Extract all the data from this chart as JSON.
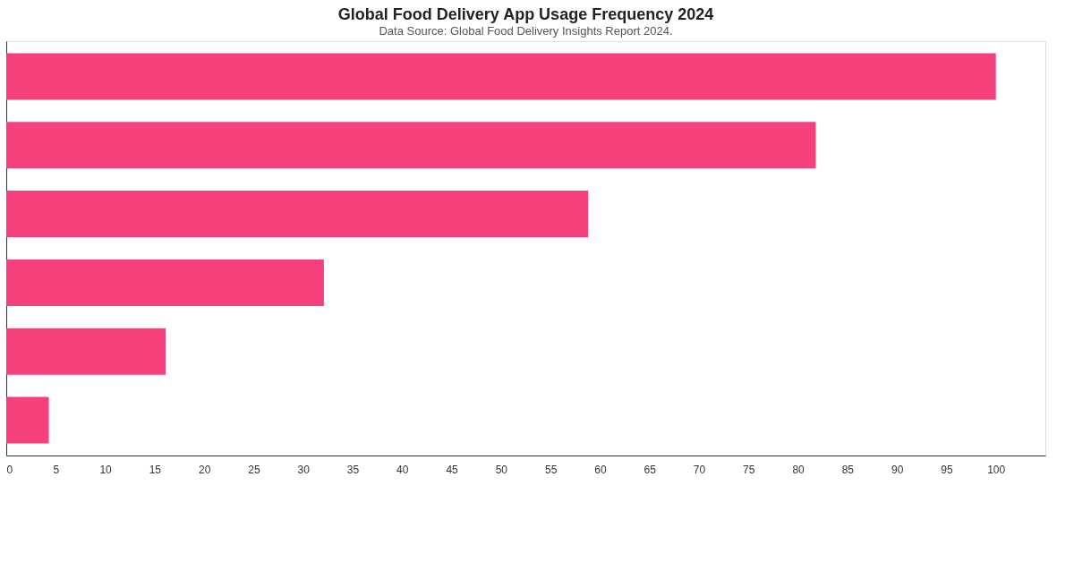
{
  "chart_data": {
    "type": "bar",
    "orientation": "horizontal",
    "title": "Global Food Delivery App Usage Frequency 2024",
    "subtitle": "Data Source: Global Food Delivery Insights Report 2024.",
    "categories": [
      null,
      null,
      null,
      null,
      null,
      null
    ],
    "values": [
      100,
      81.8,
      58.8,
      32.1,
      16.1,
      4.3
    ],
    "color": "#f5407c",
    "xlim": [
      0,
      105
    ],
    "xticks": [
      0,
      5,
      10,
      15,
      20,
      25,
      30,
      35,
      40,
      45,
      50,
      55,
      60,
      65,
      70,
      75,
      80,
      85,
      90,
      95,
      100
    ],
    "grid": false
  }
}
